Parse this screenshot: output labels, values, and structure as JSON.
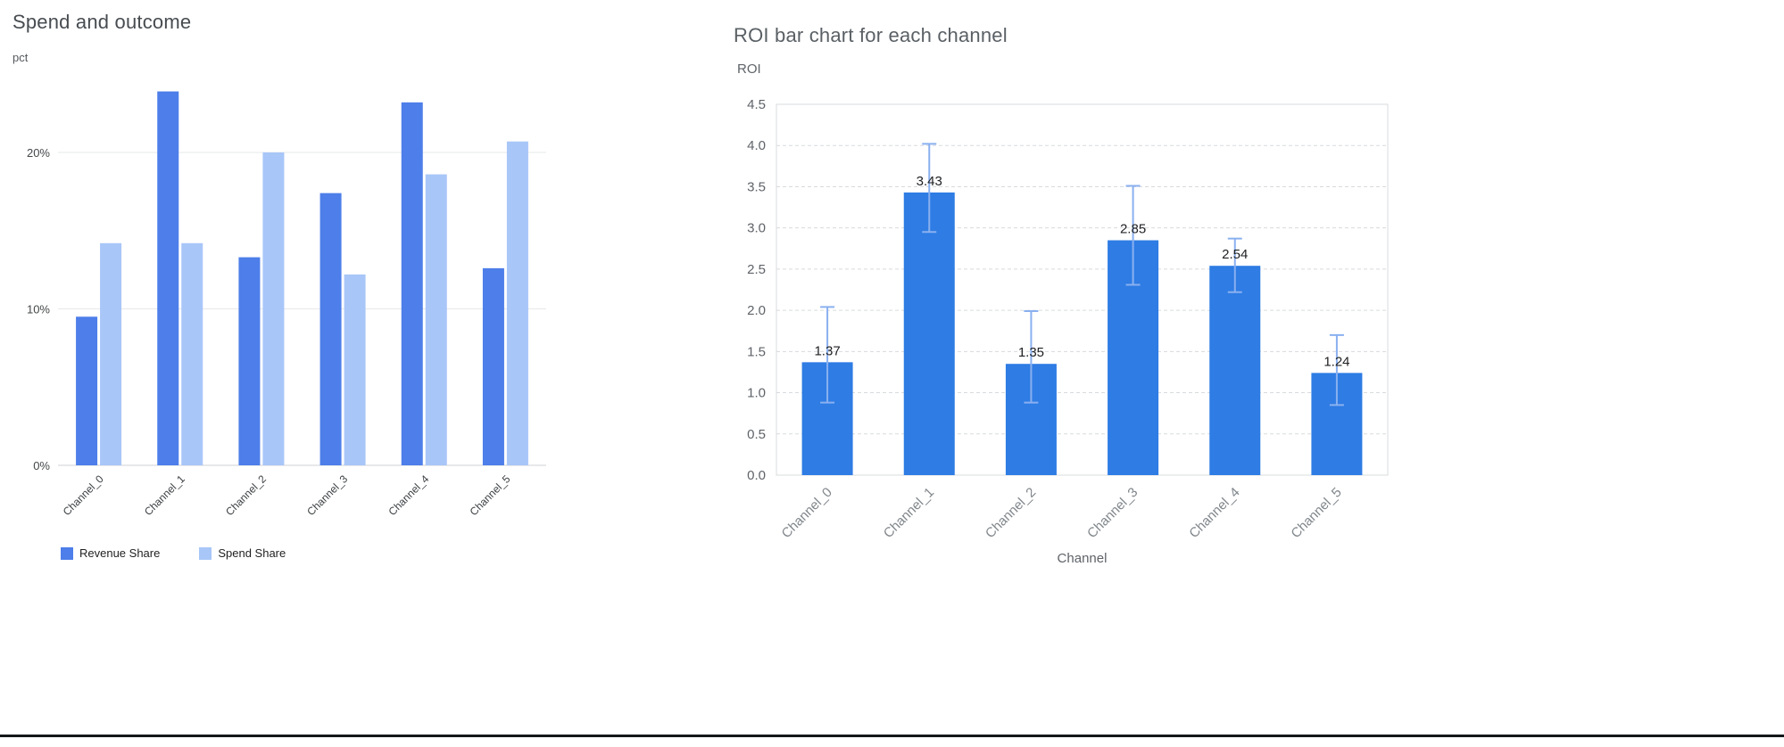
{
  "page": {
    "background": "#ffffff"
  },
  "chart_data": [
    {
      "type": "bar",
      "title": "Spend and outcome",
      "ylabel": "pct",
      "categories": [
        "Channel_0",
        "Channel_1",
        "Channel_2",
        "Channel_3",
        "Channel_4",
        "Channel_5"
      ],
      "series": [
        {
          "name": "Revenue Share",
          "color": "#4d7ee9",
          "values": [
            9.5,
            23.9,
            13.3,
            17.4,
            23.2,
            12.6
          ]
        },
        {
          "name": "Spend Share",
          "color": "#a8c6f8",
          "values": [
            14.2,
            14.2,
            20.0,
            12.2,
            18.6,
            20.7
          ]
        }
      ],
      "yticks": [
        "0%",
        "10%",
        "20%"
      ],
      "ytick_values": [
        0,
        10,
        20
      ],
      "ylim": [
        0,
        25
      ],
      "grid": "horizontal-solid",
      "legend_position": "bottom"
    },
    {
      "type": "bar",
      "title": "ROI bar chart for each channel",
      "xlabel": "Channel",
      "ylabel": "ROI",
      "categories": [
        "Channel_0",
        "Channel_1",
        "Channel_2",
        "Channel_3",
        "Channel_4",
        "Channel_5"
      ],
      "values": [
        1.37,
        3.43,
        1.35,
        2.85,
        2.54,
        1.24
      ],
      "value_labels": [
        "1.37",
        "3.43",
        "1.35",
        "2.85",
        "2.54",
        "1.24"
      ],
      "error_low": [
        0.88,
        2.95,
        0.88,
        2.31,
        2.22,
        0.85
      ],
      "error_high": [
        2.04,
        4.02,
        1.99,
        3.51,
        2.87,
        1.7
      ],
      "yticks": [
        "0.0",
        "0.5",
        "1.0",
        "1.5",
        "2.0",
        "2.5",
        "3.0",
        "3.5",
        "4.0",
        "4.5"
      ],
      "ytick_values": [
        0,
        0.5,
        1.0,
        1.5,
        2.0,
        2.5,
        3.0,
        3.5,
        4.0,
        4.5
      ],
      "ylim": [
        0,
        4.5
      ],
      "bar_color": "#2e7ce4",
      "error_color": "#8ab0f0",
      "grid": "horizontal-dashed",
      "legend_position": "none"
    }
  ]
}
